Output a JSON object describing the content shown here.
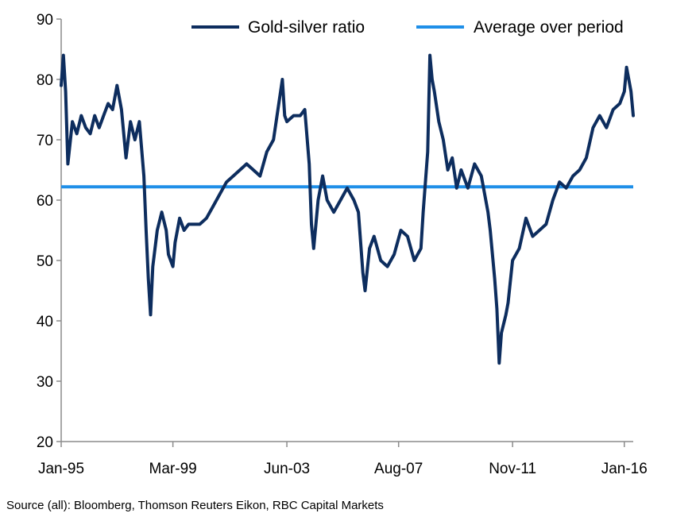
{
  "chart_data": {
    "type": "line",
    "title": "",
    "xlabel": "",
    "ylabel": "",
    "ylim": [
      20,
      90
    ],
    "xlim": [
      "1995-01",
      "2016-05"
    ],
    "y_ticks": [
      20,
      30,
      40,
      50,
      60,
      70,
      80,
      90
    ],
    "x_ticks": [
      {
        "label": "Jan-95",
        "date": "1995-01"
      },
      {
        "label": "Mar-99",
        "date": "1999-03"
      },
      {
        "label": "Jun-03",
        "date": "2003-06"
      },
      {
        "label": "Aug-07",
        "date": "2007-08"
      },
      {
        "label": "Nov-11",
        "date": "2011-11"
      },
      {
        "label": "Jan-16",
        "date": "2016-01"
      }
    ],
    "grid": false,
    "legend_position": "top-right",
    "series": [
      {
        "name": "Gold-silver ratio",
        "color": "#0d2d5e",
        "points": [
          [
            "1995-01",
            79
          ],
          [
            "1995-02",
            84
          ],
          [
            "1995-03",
            78
          ],
          [
            "1995-04",
            66
          ],
          [
            "1995-06",
            73
          ],
          [
            "1995-08",
            71
          ],
          [
            "1995-10",
            74
          ],
          [
            "1995-12",
            72
          ],
          [
            "1996-02",
            71
          ],
          [
            "1996-04",
            74
          ],
          [
            "1996-06",
            72
          ],
          [
            "1996-08",
            74
          ],
          [
            "1996-10",
            76
          ],
          [
            "1996-12",
            75
          ],
          [
            "1997-02",
            79
          ],
          [
            "1997-04",
            75
          ],
          [
            "1997-06",
            67
          ],
          [
            "1997-08",
            73
          ],
          [
            "1997-10",
            70
          ],
          [
            "1997-12",
            73
          ],
          [
            "1998-02",
            64
          ],
          [
            "1998-03",
            55
          ],
          [
            "1998-04",
            47
          ],
          [
            "1998-05",
            41
          ],
          [
            "1998-06",
            49
          ],
          [
            "1998-08",
            55
          ],
          [
            "1998-10",
            58
          ],
          [
            "1998-12",
            55
          ],
          [
            "1999-01",
            51
          ],
          [
            "1999-03",
            49
          ],
          [
            "1999-04",
            53
          ],
          [
            "1999-06",
            57
          ],
          [
            "1999-08",
            55
          ],
          [
            "1999-10",
            56
          ],
          [
            "1999-12",
            56
          ],
          [
            "2000-03",
            56
          ],
          [
            "2000-06",
            57
          ],
          [
            "2000-09",
            59
          ],
          [
            "2000-12",
            61
          ],
          [
            "2001-03",
            63
          ],
          [
            "2001-06",
            64
          ],
          [
            "2001-09",
            65
          ],
          [
            "2001-12",
            66
          ],
          [
            "2002-03",
            65
          ],
          [
            "2002-06",
            64
          ],
          [
            "2002-09",
            68
          ],
          [
            "2002-12",
            70
          ],
          [
            "2003-02",
            75
          ],
          [
            "2003-04",
            80
          ],
          [
            "2003-05",
            74
          ],
          [
            "2003-06",
            73
          ],
          [
            "2003-09",
            74
          ],
          [
            "2003-12",
            74
          ],
          [
            "2004-02",
            75
          ],
          [
            "2004-04",
            66
          ],
          [
            "2004-05",
            56
          ],
          [
            "2004-06",
            52
          ],
          [
            "2004-08",
            60
          ],
          [
            "2004-10",
            64
          ],
          [
            "2004-12",
            60
          ],
          [
            "2005-03",
            58
          ],
          [
            "2005-06",
            60
          ],
          [
            "2005-09",
            62
          ],
          [
            "2005-12",
            60
          ],
          [
            "2006-02",
            58
          ],
          [
            "2006-04",
            48
          ],
          [
            "2006-05",
            45
          ],
          [
            "2006-07",
            52
          ],
          [
            "2006-09",
            54
          ],
          [
            "2006-12",
            50
          ],
          [
            "2007-03",
            49
          ],
          [
            "2007-06",
            51
          ],
          [
            "2007-09",
            55
          ],
          [
            "2007-12",
            54
          ],
          [
            "2008-03",
            50
          ],
          [
            "2008-06",
            52
          ],
          [
            "2008-07",
            58
          ],
          [
            "2008-09",
            68
          ],
          [
            "2008-10",
            84
          ],
          [
            "2008-11",
            80
          ],
          [
            "2008-12",
            78
          ],
          [
            "2009-02",
            73
          ],
          [
            "2009-04",
            70
          ],
          [
            "2009-06",
            65
          ],
          [
            "2009-08",
            67
          ],
          [
            "2009-10",
            62
          ],
          [
            "2009-12",
            65
          ],
          [
            "2010-03",
            62
          ],
          [
            "2010-06",
            66
          ],
          [
            "2010-09",
            64
          ],
          [
            "2010-12",
            58
          ],
          [
            "2011-01",
            55
          ],
          [
            "2011-03",
            47
          ],
          [
            "2011-04",
            42
          ],
          [
            "2011-05",
            33
          ],
          [
            "2011-06",
            38
          ],
          [
            "2011-08",
            41
          ],
          [
            "2011-09",
            43
          ],
          [
            "2011-11",
            50
          ],
          [
            "2012-02",
            52
          ],
          [
            "2012-05",
            57
          ],
          [
            "2012-08",
            54
          ],
          [
            "2012-11",
            55
          ],
          [
            "2013-02",
            56
          ],
          [
            "2013-05",
            60
          ],
          [
            "2013-08",
            63
          ],
          [
            "2013-11",
            62
          ],
          [
            "2014-02",
            64
          ],
          [
            "2014-05",
            65
          ],
          [
            "2014-08",
            67
          ],
          [
            "2014-11",
            72
          ],
          [
            "2015-02",
            74
          ],
          [
            "2015-05",
            72
          ],
          [
            "2015-08",
            75
          ],
          [
            "2015-11",
            76
          ],
          [
            "2016-01",
            78
          ],
          [
            "2016-02",
            82
          ],
          [
            "2016-03",
            80
          ],
          [
            "2016-04",
            78
          ],
          [
            "2016-05",
            74
          ]
        ]
      },
      {
        "name": "Average over period",
        "color": "#1f8fe8",
        "constant": 62.2
      }
    ]
  },
  "source": "Source (all): Bloomberg, Thomson Reuters Eikon, RBC Capital Markets"
}
